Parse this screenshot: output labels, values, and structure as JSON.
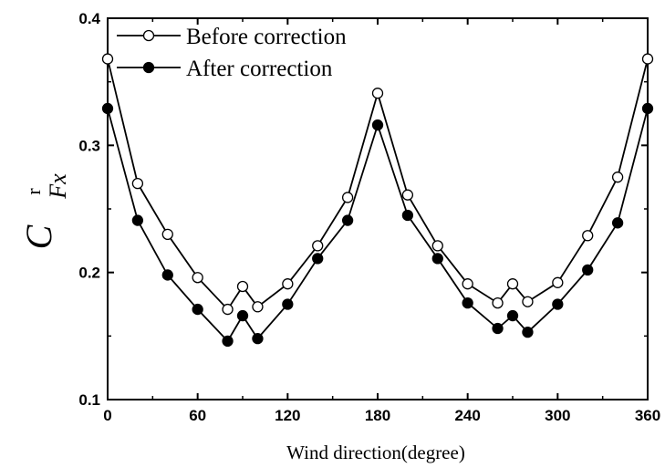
{
  "chart_data": {
    "type": "line",
    "xlabel": "Wind direction(degree)",
    "ylabel": {
      "main": "C",
      "sub": "Fx",
      "sup": "r"
    },
    "xlim": [
      0,
      360
    ],
    "ylim": [
      0.1,
      0.4
    ],
    "xticks": [
      0,
      60,
      120,
      180,
      240,
      300,
      360
    ],
    "yticks": [
      0.1,
      0.2,
      0.3,
      0.4
    ],
    "xtick_labels": [
      "0",
      "60",
      "120",
      "180",
      "240",
      "300",
      "360"
    ],
    "ytick_labels": [
      "0.1",
      "0.2",
      "0.3",
      "0.4"
    ],
    "grid": false,
    "legend_position": "top-left",
    "x": [
      0,
      20,
      40,
      60,
      80,
      90,
      100,
      120,
      140,
      160,
      180,
      200,
      220,
      240,
      260,
      270,
      280,
      300,
      320,
      340,
      360
    ],
    "series": [
      {
        "name": "Before correction",
        "marker": "open-circle",
        "values": [
          0.368,
          0.27,
          0.23,
          0.196,
          0.171,
          0.189,
          0.173,
          0.191,
          0.221,
          0.259,
          0.341,
          0.261,
          0.221,
          0.191,
          0.176,
          0.191,
          0.177,
          0.192,
          0.229,
          0.275,
          0.368
        ]
      },
      {
        "name": "After correction",
        "marker": "filled-circle",
        "values": [
          0.329,
          0.241,
          0.198,
          0.171,
          0.146,
          0.166,
          0.148,
          0.175,
          0.211,
          0.241,
          0.316,
          0.245,
          0.211,
          0.176,
          0.156,
          0.166,
          0.153,
          0.175,
          0.202,
          0.239,
          0.329
        ]
      }
    ]
  }
}
